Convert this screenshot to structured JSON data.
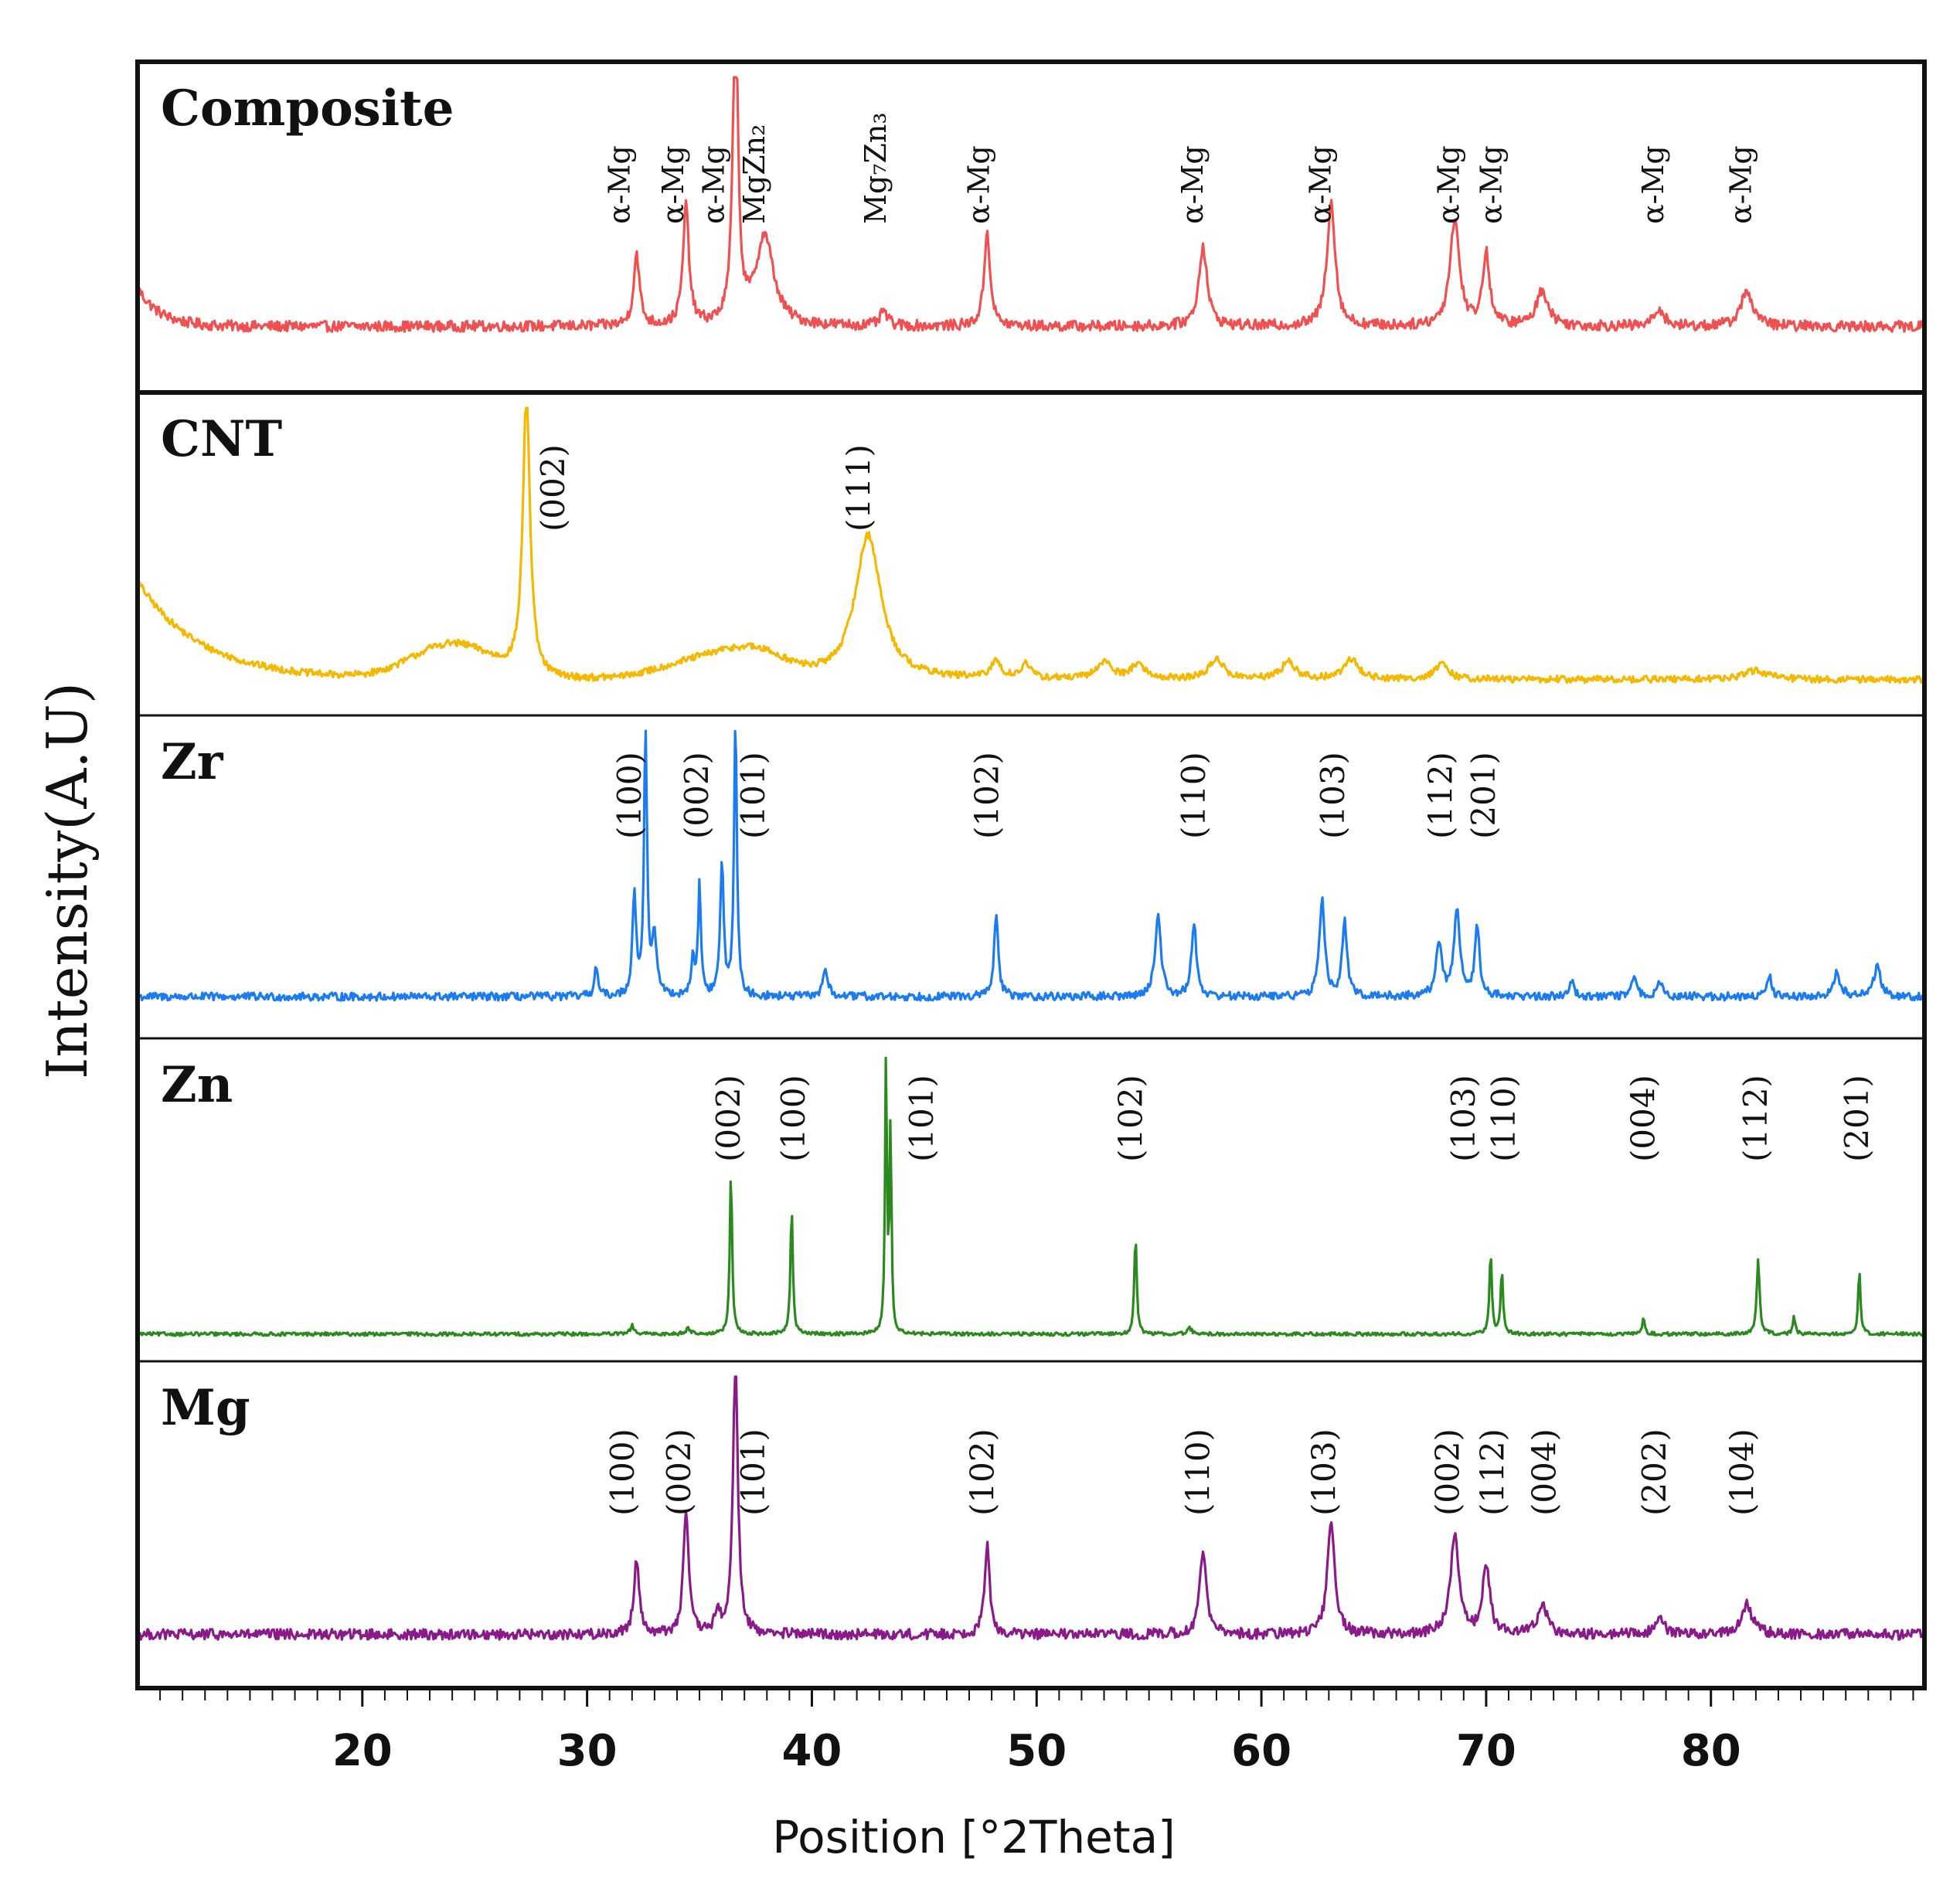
{
  "chart_data": {
    "type": "line",
    "xlabel": "Position [°2Theta]",
    "ylabel": "Intensity(A.U)",
    "xlim": [
      10,
      89.5
    ],
    "x_ticks": [
      20,
      30,
      40,
      50,
      60,
      70,
      80
    ],
    "panels": [
      {
        "name": "Composite",
        "color": "#f05050",
        "baseline": 0.16,
        "noise": 0.018,
        "broad": [
          [
            10,
            0.13,
            0,
            1
          ]
        ],
        "peaks": [
          [
            32.2,
            0.24,
            0.25
          ],
          [
            34.4,
            0.4,
            0.25
          ],
          [
            36.6,
            1.05,
            0.22
          ],
          [
            37.9,
            0.3,
            0.75
          ],
          [
            43.2,
            0.05,
            0.3
          ],
          [
            47.8,
            0.32,
            0.25
          ],
          [
            57.4,
            0.27,
            0.35
          ],
          [
            63.1,
            0.42,
            0.35
          ],
          [
            68.6,
            0.36,
            0.4
          ],
          [
            70.0,
            0.24,
            0.3
          ],
          [
            72.5,
            0.12,
            0.5
          ],
          [
            77.7,
            0.06,
            0.4
          ],
          [
            81.6,
            0.12,
            0.5
          ]
        ],
        "labels": [
          {
            "text": "α-Mg",
            "x": 31.4
          },
          {
            "text": "α-Mg",
            "x": 33.8
          },
          {
            "text": "α-Mg",
            "x": 35.6
          },
          {
            "text": "MgZn₂",
            "x": 37.4
          },
          {
            "text": "Mg₇Zn₃",
            "x": 42.8
          },
          {
            "text": "α-Mg",
            "x": 47.4
          },
          {
            "text": "α-Mg",
            "x": 56.9
          },
          {
            "text": "α-Mg",
            "x": 62.6
          },
          {
            "text": "α-Mg",
            "x": 68.3
          },
          {
            "text": "α-Mg",
            "x": 70.2
          },
          {
            "text": "α-Mg",
            "x": 77.4
          },
          {
            "text": "α-Mg",
            "x": 81.3
          }
        ]
      },
      {
        "name": "CNT",
        "color": "#f5b800",
        "baseline": 0.06,
        "noise": 0.012,
        "broad": [
          [
            10,
            0.34,
            0,
            2.8
          ],
          [
            24,
            0.12,
            2.5,
            0
          ],
          [
            35,
            0.06,
            2.5,
            0
          ],
          [
            37.5,
            0.08,
            2,
            0
          ]
        ],
        "peaks": [
          [
            27.3,
            0.98,
            0.3
          ],
          [
            42.5,
            0.5,
            1.1
          ],
          [
            48.2,
            0.06,
            0.4
          ],
          [
            49.5,
            0.05,
            0.4
          ],
          [
            53.0,
            0.06,
            0.6
          ],
          [
            54.5,
            0.05,
            0.6
          ],
          [
            58.0,
            0.07,
            0.6
          ],
          [
            61.2,
            0.06,
            0.6
          ],
          [
            64.0,
            0.07,
            0.6
          ],
          [
            68.0,
            0.05,
            0.6
          ],
          [
            82.0,
            0.03,
            1.0
          ]
        ],
        "labels": [
          {
            "text": "(002)",
            "x": 28.5
          },
          {
            "text": "(111)",
            "x": 42.1
          }
        ]
      },
      {
        "name": "Zr",
        "color": "#1a7cf0",
        "baseline": 0.08,
        "noise": 0.014,
        "broad": [],
        "peaks": [
          [
            30.4,
            0.1,
            0.15
          ],
          [
            32.1,
            0.36,
            0.15
          ],
          [
            32.6,
            0.96,
            0.12
          ],
          [
            33.0,
            0.2,
            0.2
          ],
          [
            34.7,
            0.12,
            0.15
          ],
          [
            35.0,
            0.38,
            0.12
          ],
          [
            36.0,
            0.45,
            0.15
          ],
          [
            36.6,
            0.96,
            0.12
          ],
          [
            40.6,
            0.1,
            0.2
          ],
          [
            48.2,
            0.28,
            0.18
          ],
          [
            55.4,
            0.28,
            0.25
          ],
          [
            57.0,
            0.26,
            0.2
          ],
          [
            62.7,
            0.34,
            0.22
          ],
          [
            63.7,
            0.26,
            0.2
          ],
          [
            67.9,
            0.18,
            0.25
          ],
          [
            68.7,
            0.3,
            0.25
          ],
          [
            69.6,
            0.24,
            0.2
          ],
          [
            73.8,
            0.06,
            0.2
          ],
          [
            76.6,
            0.07,
            0.2
          ],
          [
            77.7,
            0.06,
            0.2
          ],
          [
            82.6,
            0.07,
            0.2
          ],
          [
            85.6,
            0.08,
            0.3
          ],
          [
            87.4,
            0.1,
            0.3
          ]
        ],
        "labels": [
          {
            "text": "(100)",
            "x": 31.9
          },
          {
            "text": "(002)",
            "x": 34.9
          },
          {
            "text": "(101)",
            "x": 37.4
          },
          {
            "text": "(102)",
            "x": 47.8
          },
          {
            "text": "(110)",
            "x": 57.0
          },
          {
            "text": "(103)",
            "x": 63.2
          },
          {
            "text": "(112)",
            "x": 68.0
          },
          {
            "text": "(201)",
            "x": 69.9
          }
        ]
      },
      {
        "name": "Zn",
        "color": "#2a8a1e",
        "baseline": 0.03,
        "noise": 0.006,
        "broad": [],
        "peaks": [
          [
            32.0,
            0.03,
            0.15
          ],
          [
            34.5,
            0.02,
            0.2
          ],
          [
            36.4,
            0.56,
            0.1
          ],
          [
            39.1,
            0.44,
            0.1
          ],
          [
            43.3,
            0.95,
            0.08
          ],
          [
            43.5,
            0.7,
            0.08
          ],
          [
            54.4,
            0.34,
            0.1
          ],
          [
            56.8,
            0.02,
            0.2
          ],
          [
            70.2,
            0.28,
            0.1
          ],
          [
            70.7,
            0.22,
            0.1
          ],
          [
            77.0,
            0.06,
            0.1
          ],
          [
            82.1,
            0.26,
            0.12
          ],
          [
            83.7,
            0.06,
            0.1
          ],
          [
            86.6,
            0.22,
            0.1
          ]
        ],
        "labels": [
          {
            "text": "(002)",
            "x": 36.3
          },
          {
            "text": "(100)",
            "x": 39.2
          },
          {
            "text": "(101)",
            "x": 44.9
          },
          {
            "text": "(102)",
            "x": 54.2
          },
          {
            "text": "(103)",
            "x": 69.0
          },
          {
            "text": "(110)",
            "x": 70.8
          },
          {
            "text": "(004)",
            "x": 77.0
          },
          {
            "text": "(112)",
            "x": 82.0
          },
          {
            "text": "(201)",
            "x": 86.5
          }
        ]
      },
      {
        "name": "Mg",
        "color": "#8a1a8a",
        "baseline": 0.12,
        "noise": 0.018,
        "broad": [],
        "peaks": [
          [
            32.2,
            0.26,
            0.22
          ],
          [
            34.4,
            0.42,
            0.22
          ],
          [
            35.8,
            0.08,
            0.2
          ],
          [
            36.6,
            0.96,
            0.2
          ],
          [
            47.8,
            0.3,
            0.22
          ],
          [
            57.4,
            0.28,
            0.28
          ],
          [
            63.1,
            0.4,
            0.3
          ],
          [
            68.6,
            0.34,
            0.35
          ],
          [
            70.0,
            0.24,
            0.3
          ],
          [
            72.5,
            0.1,
            0.4
          ],
          [
            77.7,
            0.06,
            0.35
          ],
          [
            81.6,
            0.1,
            0.45
          ]
        ],
        "labels": [
          {
            "text": "(100)",
            "x": 31.6
          },
          {
            "text": "(002)",
            "x": 34.1
          },
          {
            "text": "(101)",
            "x": 37.4
          },
          {
            "text": "(102)",
            "x": 47.6
          },
          {
            "text": "(110)",
            "x": 57.2
          },
          {
            "text": "(103)",
            "x": 62.8
          },
          {
            "text": "(002)",
            "x": 68.3
          },
          {
            "text": "(112)",
            "x": 70.3
          },
          {
            "text": "(004)",
            "x": 72.6
          },
          {
            "text": "(202)",
            "x": 77.5
          },
          {
            "text": "(104)",
            "x": 81.4
          }
        ]
      }
    ]
  }
}
